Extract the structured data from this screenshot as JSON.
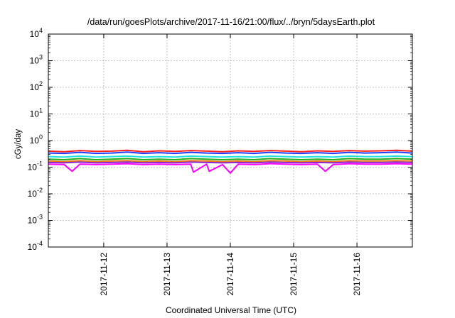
{
  "chart_data": {
    "type": "line",
    "title": "/data/run/goesPlots/archive/2017-11-16/21:00/flux/../bryn/5daysEarth.plot",
    "xlabel": "Coordinated Universal Time (UTC)",
    "ylabel": "cGy/day",
    "yscale": "log",
    "ylim": [
      0.0001,
      10000
    ],
    "xlim": [
      "2017-11-11T03:00",
      "2017-11-16T21:00"
    ],
    "grid": true,
    "legend": "none",
    "yticks": [
      {
        "value": 0.0001,
        "base": "10",
        "exp": "-4"
      },
      {
        "value": 0.001,
        "base": "10",
        "exp": "-3"
      },
      {
        "value": 0.01,
        "base": "10",
        "exp": "-2"
      },
      {
        "value": 0.1,
        "base": "10",
        "exp": "-1"
      },
      {
        "value": 1,
        "base": "10",
        "exp": "0"
      },
      {
        "value": 10,
        "base": "10",
        "exp": "1"
      },
      {
        "value": 100,
        "base": "10",
        "exp": "2"
      },
      {
        "value": 1000,
        "base": "10",
        "exp": "3"
      },
      {
        "value": 10000,
        "base": "10",
        "exp": "4"
      }
    ],
    "xticks": [
      "2017-11-12",
      "2017-11-13",
      "2017-11-14",
      "2017-11-15",
      "2017-11-16"
    ],
    "series": [
      {
        "color": "#ff2020",
        "values": [
          [
            "2017-11-11T03:00",
            0.4
          ],
          [
            "2017-11-11T09:00",
            0.38
          ],
          [
            "2017-11-11T15:00",
            0.42
          ],
          [
            "2017-11-11T21:00",
            0.39
          ],
          [
            "2017-11-12T03:00",
            0.4
          ],
          [
            "2017-11-12T09:00",
            0.43
          ],
          [
            "2017-11-12T15:00",
            0.38
          ],
          [
            "2017-11-12T21:00",
            0.41
          ],
          [
            "2017-11-13T03:00",
            0.39
          ],
          [
            "2017-11-13T09:00",
            0.42
          ],
          [
            "2017-11-13T15:00",
            0.4
          ],
          [
            "2017-11-13T21:00",
            0.38
          ],
          [
            "2017-11-14T03:00",
            0.41
          ],
          [
            "2017-11-14T09:00",
            0.39
          ],
          [
            "2017-11-14T15:00",
            0.42
          ],
          [
            "2017-11-14T21:00",
            0.4
          ],
          [
            "2017-11-15T03:00",
            0.38
          ],
          [
            "2017-11-15T09:00",
            0.41
          ],
          [
            "2017-11-15T15:00",
            0.39
          ],
          [
            "2017-11-15T21:00",
            0.42
          ],
          [
            "2017-11-16T03:00",
            0.4
          ],
          [
            "2017-11-16T09:00",
            0.41
          ],
          [
            "2017-11-16T15:00",
            0.43
          ],
          [
            "2017-11-16T21:00",
            0.4
          ]
        ]
      },
      {
        "color": "#2040ff",
        "values": [
          [
            "2017-11-11T03:00",
            0.34
          ],
          [
            "2017-11-11T09:00",
            0.33
          ],
          [
            "2017-11-11T15:00",
            0.36
          ],
          [
            "2017-11-11T21:00",
            0.33
          ],
          [
            "2017-11-12T03:00",
            0.34
          ],
          [
            "2017-11-12T09:00",
            0.37
          ],
          [
            "2017-11-12T15:00",
            0.33
          ],
          [
            "2017-11-12T21:00",
            0.35
          ],
          [
            "2017-11-13T03:00",
            0.33
          ],
          [
            "2017-11-13T09:00",
            0.36
          ],
          [
            "2017-11-13T15:00",
            0.34
          ],
          [
            "2017-11-13T21:00",
            0.33
          ],
          [
            "2017-11-14T03:00",
            0.35
          ],
          [
            "2017-11-14T09:00",
            0.33
          ],
          [
            "2017-11-14T15:00",
            0.36
          ],
          [
            "2017-11-14T21:00",
            0.34
          ],
          [
            "2017-11-15T03:00",
            0.33
          ],
          [
            "2017-11-15T09:00",
            0.35
          ],
          [
            "2017-11-15T15:00",
            0.33
          ],
          [
            "2017-11-15T21:00",
            0.36
          ],
          [
            "2017-11-16T03:00",
            0.34
          ],
          [
            "2017-11-16T09:00",
            0.35
          ],
          [
            "2017-11-16T15:00",
            0.37
          ],
          [
            "2017-11-16T21:00",
            0.34
          ]
        ]
      },
      {
        "color": "#20e0e0",
        "values": [
          [
            "2017-11-11T03:00",
            0.25
          ],
          [
            "2017-11-11T09:00",
            0.24
          ],
          [
            "2017-11-11T15:00",
            0.26
          ],
          [
            "2017-11-11T21:00",
            0.24
          ],
          [
            "2017-11-12T03:00",
            0.25
          ],
          [
            "2017-11-12T09:00",
            0.26
          ],
          [
            "2017-11-12T15:00",
            0.24
          ],
          [
            "2017-11-12T21:00",
            0.25
          ],
          [
            "2017-11-13T03:00",
            0.24
          ],
          [
            "2017-11-13T09:00",
            0.26
          ],
          [
            "2017-11-13T15:00",
            0.25
          ],
          [
            "2017-11-13T21:00",
            0.24
          ],
          [
            "2017-11-14T03:00",
            0.25
          ],
          [
            "2017-11-14T09:00",
            0.24
          ],
          [
            "2017-11-14T15:00",
            0.26
          ],
          [
            "2017-11-14T21:00",
            0.25
          ],
          [
            "2017-11-15T03:00",
            0.24
          ],
          [
            "2017-11-15T09:00",
            0.25
          ],
          [
            "2017-11-15T15:00",
            0.24
          ],
          [
            "2017-11-15T21:00",
            0.26
          ],
          [
            "2017-11-16T03:00",
            0.25
          ],
          [
            "2017-11-16T09:00",
            0.25
          ],
          [
            "2017-11-16T15:00",
            0.26
          ],
          [
            "2017-11-16T21:00",
            0.25
          ]
        ]
      },
      {
        "color": "#20b020",
        "values": [
          [
            "2017-11-11T03:00",
            0.2
          ],
          [
            "2017-11-11T09:00",
            0.19
          ],
          [
            "2017-11-11T15:00",
            0.21
          ],
          [
            "2017-11-11T21:00",
            0.19
          ],
          [
            "2017-11-12T03:00",
            0.2
          ],
          [
            "2017-11-12T09:00",
            0.21
          ],
          [
            "2017-11-12T15:00",
            0.19
          ],
          [
            "2017-11-12T21:00",
            0.2
          ],
          [
            "2017-11-13T03:00",
            0.19
          ],
          [
            "2017-11-13T09:00",
            0.21
          ],
          [
            "2017-11-13T15:00",
            0.2
          ],
          [
            "2017-11-13T21:00",
            0.19
          ],
          [
            "2017-11-14T03:00",
            0.2
          ],
          [
            "2017-11-14T09:00",
            0.19
          ],
          [
            "2017-11-14T15:00",
            0.21
          ],
          [
            "2017-11-14T21:00",
            0.2
          ],
          [
            "2017-11-15T03:00",
            0.19
          ],
          [
            "2017-11-15T09:00",
            0.2
          ],
          [
            "2017-11-15T15:00",
            0.19
          ],
          [
            "2017-11-15T21:00",
            0.21
          ],
          [
            "2017-11-16T03:00",
            0.2
          ],
          [
            "2017-11-16T09:00",
            0.2
          ],
          [
            "2017-11-16T15:00",
            0.21
          ],
          [
            "2017-11-16T21:00",
            0.2
          ]
        ]
      },
      {
        "color": "#f07818",
        "values": [
          [
            "2017-11-11T03:00",
            0.17
          ],
          [
            "2017-11-11T09:00",
            0.16
          ],
          [
            "2017-11-11T15:00",
            0.175
          ],
          [
            "2017-11-11T21:00",
            0.16
          ],
          [
            "2017-11-12T03:00",
            0.17
          ],
          [
            "2017-11-12T09:00",
            0.175
          ],
          [
            "2017-11-12T15:00",
            0.16
          ],
          [
            "2017-11-12T21:00",
            0.17
          ],
          [
            "2017-11-13T03:00",
            0.16
          ],
          [
            "2017-11-13T09:00",
            0.175
          ],
          [
            "2017-11-13T15:00",
            0.17
          ],
          [
            "2017-11-13T21:00",
            0.16
          ],
          [
            "2017-11-14T03:00",
            0.17
          ],
          [
            "2017-11-14T09:00",
            0.16
          ],
          [
            "2017-11-14T15:00",
            0.175
          ],
          [
            "2017-11-14T21:00",
            0.17
          ],
          [
            "2017-11-15T03:00",
            0.16
          ],
          [
            "2017-11-15T09:00",
            0.17
          ],
          [
            "2017-11-15T15:00",
            0.16
          ],
          [
            "2017-11-15T21:00",
            0.175
          ],
          [
            "2017-11-16T03:00",
            0.17
          ],
          [
            "2017-11-16T09:00",
            0.17
          ],
          [
            "2017-11-16T15:00",
            0.175
          ],
          [
            "2017-11-16T21:00",
            0.17
          ]
        ]
      },
      {
        "color": "#8a2ad0",
        "values": [
          [
            "2017-11-11T03:00",
            0.15
          ],
          [
            "2017-11-11T09:00",
            0.145
          ],
          [
            "2017-11-11T15:00",
            0.155
          ],
          [
            "2017-11-11T21:00",
            0.145
          ],
          [
            "2017-11-12T03:00",
            0.15
          ],
          [
            "2017-11-12T09:00",
            0.155
          ],
          [
            "2017-11-12T15:00",
            0.145
          ],
          [
            "2017-11-12T21:00",
            0.15
          ],
          [
            "2017-11-13T03:00",
            0.145
          ],
          [
            "2017-11-13T09:00",
            0.155
          ],
          [
            "2017-11-13T15:00",
            0.15
          ],
          [
            "2017-11-13T21:00",
            0.145
          ],
          [
            "2017-11-14T03:00",
            0.15
          ],
          [
            "2017-11-14T09:00",
            0.145
          ],
          [
            "2017-11-14T15:00",
            0.155
          ],
          [
            "2017-11-14T21:00",
            0.15
          ],
          [
            "2017-11-15T03:00",
            0.145
          ],
          [
            "2017-11-15T09:00",
            0.15
          ],
          [
            "2017-11-15T15:00",
            0.145
          ],
          [
            "2017-11-15T21:00",
            0.155
          ],
          [
            "2017-11-16T03:00",
            0.15
          ],
          [
            "2017-11-16T09:00",
            0.15
          ],
          [
            "2017-11-16T15:00",
            0.155
          ],
          [
            "2017-11-16T21:00",
            0.15
          ]
        ]
      },
      {
        "color": "#ff00ff",
        "values": [
          [
            "2017-11-11T03:00",
            0.13
          ],
          [
            "2017-11-11T09:00",
            0.125
          ],
          [
            "2017-11-11T12:00",
            0.07
          ],
          [
            "2017-11-11T15:00",
            0.13
          ],
          [
            "2017-11-11T21:00",
            0.125
          ],
          [
            "2017-11-12T03:00",
            0.13
          ],
          [
            "2017-11-12T09:00",
            0.135
          ],
          [
            "2017-11-12T15:00",
            0.125
          ],
          [
            "2017-11-12T21:00",
            0.13
          ],
          [
            "2017-11-13T03:00",
            0.125
          ],
          [
            "2017-11-13T09:00",
            0.13
          ],
          [
            "2017-11-13T10:00",
            0.065
          ],
          [
            "2017-11-13T15:00",
            0.13
          ],
          [
            "2017-11-13T16:00",
            0.07
          ],
          [
            "2017-11-13T21:00",
            0.125
          ],
          [
            "2017-11-14T00:00",
            0.06
          ],
          [
            "2017-11-14T03:00",
            0.13
          ],
          [
            "2017-11-14T09:00",
            0.125
          ],
          [
            "2017-11-14T15:00",
            0.135
          ],
          [
            "2017-11-14T21:00",
            0.13
          ],
          [
            "2017-11-15T03:00",
            0.125
          ],
          [
            "2017-11-15T09:00",
            0.13
          ],
          [
            "2017-11-15T12:00",
            0.07
          ],
          [
            "2017-11-15T15:00",
            0.125
          ],
          [
            "2017-11-15T21:00",
            0.135
          ],
          [
            "2017-11-16T03:00",
            0.13
          ],
          [
            "2017-11-16T09:00",
            0.13
          ],
          [
            "2017-11-16T15:00",
            0.135
          ],
          [
            "2017-11-16T21:00",
            0.13
          ]
        ]
      }
    ]
  }
}
